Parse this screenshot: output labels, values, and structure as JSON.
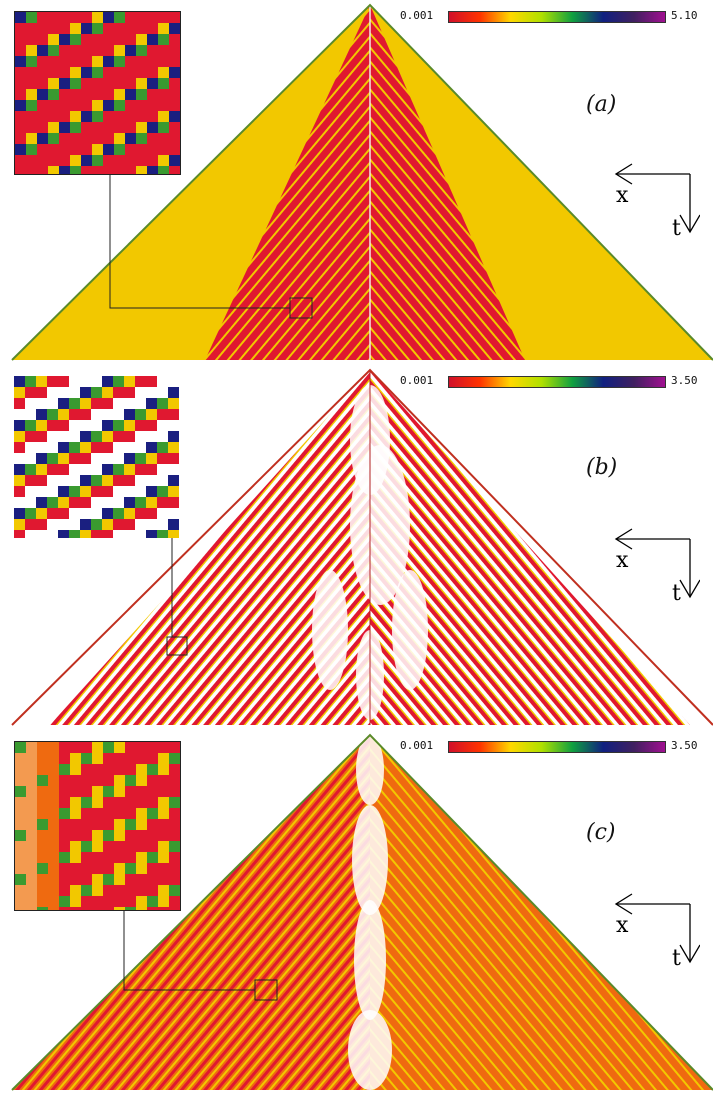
{
  "figure": {
    "panels": [
      {
        "label": "(a)",
        "cb_min": "0.001",
        "cb_max": "5.10",
        "style": "a"
      },
      {
        "label": "(b)",
        "cb_min": "0.001",
        "cb_max": "3.50",
        "style": "b"
      },
      {
        "label": "(c)",
        "cb_min": "0.001",
        "cb_max": "3.50",
        "style": "c"
      }
    ],
    "axes": {
      "x_label": "x",
      "t_label": "t"
    },
    "colorbar_colors": [
      "#d0102a",
      "#ff3300",
      "#ffd800",
      "#b0e000",
      "#10a040",
      "#102080",
      "#402060",
      "#a01090"
    ],
    "palette": {
      "red": "#e01830",
      "yellow": "#f2c800",
      "orange": "#ef6a10",
      "green": "#3a9a30",
      "navy": "#1a1f80",
      "white": "#ffffff"
    }
  }
}
